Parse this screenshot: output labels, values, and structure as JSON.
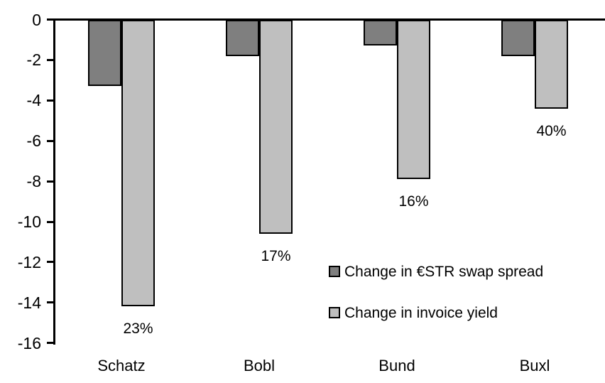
{
  "chart_data": {
    "type": "bar",
    "orientation": "vertical",
    "title": "",
    "xlabel": "",
    "ylabel": "",
    "categories": [
      "Schatz",
      "Bobl",
      "Bund",
      "Buxl"
    ],
    "series": [
      {
        "name": "Change in €STR swap spread",
        "color": "#7f7f7f",
        "values": [
          -3.3,
          -1.8,
          -1.3,
          -1.8
        ]
      },
      {
        "name": "Change in invoice yield",
        "color": "#bfbfbf",
        "values": [
          -14.2,
          -10.6,
          -7.9,
          -4.4
        ]
      }
    ],
    "bar_labels": {
      "series": "Change in invoice yield",
      "values": [
        "23%",
        "17%",
        "16%",
        "40%"
      ]
    },
    "ylim": [
      -16,
      0
    ],
    "yticks": [
      0,
      -2,
      -4,
      -6,
      -8,
      -10,
      -12,
      -14,
      -16
    ],
    "grid": false,
    "legend_position": "inside-right",
    "bar_border_color": "#000000",
    "axis_color": "#000000",
    "background": "#ffffff"
  }
}
